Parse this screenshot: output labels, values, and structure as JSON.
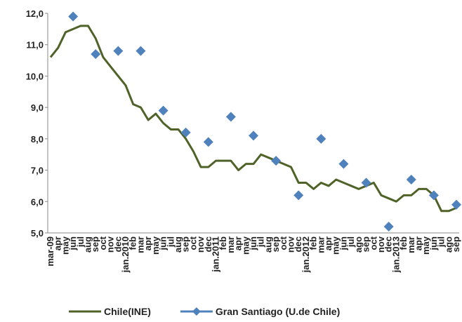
{
  "chart_data": {
    "type": "line",
    "categories": [
      "mar-09",
      "apr",
      "may",
      "jun",
      "jul",
      "aug",
      "sep",
      "oct",
      "nov",
      "dec",
      "jan.2010",
      "feb",
      "mar",
      "apr",
      "may",
      "jun",
      "jul",
      "aug",
      "sep",
      "oct",
      "nov",
      "dec",
      "jan.2011",
      "feb",
      "mar",
      "apr",
      "may",
      "jun",
      "jul",
      "aug",
      "sep",
      "oct",
      "nov",
      "dec",
      "jan.2012",
      "feb",
      "mar",
      "apr",
      "may",
      "jun",
      "jul",
      "ago",
      "sep",
      "oct",
      "nov",
      "dec",
      "jan.2013",
      "feb",
      "mar",
      "apr",
      "may",
      "jun",
      "jul",
      "ago",
      "sep"
    ],
    "series": [
      {
        "name": "Chile(INE)",
        "color": "#4f6228",
        "style": "line",
        "values": [
          10.6,
          10.9,
          11.4,
          11.5,
          11.6,
          11.6,
          11.2,
          10.6,
          10.3,
          10.0,
          9.7,
          9.1,
          9.0,
          8.6,
          8.8,
          8.5,
          8.3,
          8.3,
          8.0,
          7.6,
          7.1,
          7.1,
          7.3,
          7.3,
          7.3,
          7.0,
          7.2,
          7.2,
          7.5,
          7.4,
          7.3,
          7.2,
          7.1,
          6.6,
          6.6,
          6.4,
          6.6,
          6.5,
          6.7,
          6.6,
          6.5,
          6.4,
          6.5,
          6.6,
          6.2,
          6.1,
          6.0,
          6.2,
          6.2,
          6.4,
          6.4,
          6.2,
          5.7,
          5.7,
          5.8
        ]
      },
      {
        "name": "Gran Santiago (U.de Chile)",
        "color": "#4f81bd",
        "style": "marker",
        "values": [
          null,
          null,
          null,
          11.9,
          null,
          null,
          10.7,
          null,
          null,
          10.8,
          null,
          null,
          10.8,
          null,
          null,
          8.9,
          null,
          null,
          8.2,
          null,
          null,
          7.9,
          null,
          null,
          8.7,
          null,
          null,
          8.1,
          null,
          null,
          7.3,
          null,
          null,
          6.2,
          null,
          null,
          8.0,
          null,
          null,
          7.2,
          null,
          null,
          6.6,
          null,
          null,
          5.2,
          null,
          null,
          6.7,
          null,
          null,
          6.2,
          null,
          null,
          5.9
        ]
      }
    ],
    "ylim": [
      5,
      12
    ],
    "yticks": [
      {
        "value": 5,
        "label": "5,0"
      },
      {
        "value": 6,
        "label": "6,0"
      },
      {
        "value": 7,
        "label": "7,0"
      },
      {
        "value": 8,
        "label": "8,0"
      },
      {
        "value": 9,
        "label": "9,0"
      },
      {
        "value": 10,
        "label": "10,0"
      },
      {
        "value": 11,
        "label": "11,0"
      },
      {
        "value": 12,
        "label": "12,0"
      }
    ],
    "grid": false,
    "legend": "bottom"
  }
}
